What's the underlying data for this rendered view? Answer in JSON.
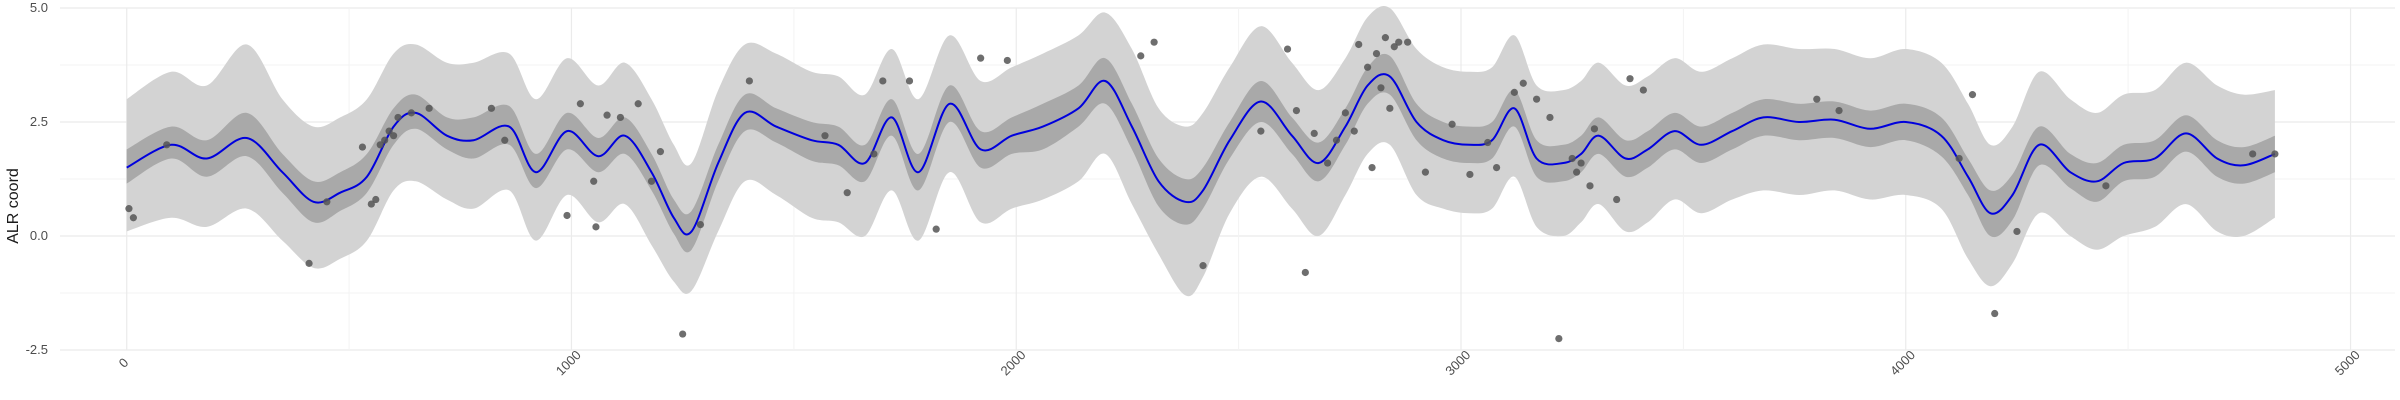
{
  "chart_data": {
    "type": "line",
    "title": "",
    "xlabel": "",
    "ylabel": "ALR coord",
    "xlim": [
      -150,
      5100
    ],
    "ylim": [
      -2.5,
      5.0
    ],
    "x_ticks": [
      0,
      1000,
      2000,
      3000,
      4000,
      5000
    ],
    "y_ticks": [
      -2.5,
      0.0,
      2.5,
      5.0
    ],
    "x_tick_labels": [
      "0",
      "1000",
      "2000",
      "3000",
      "4000",
      "5000"
    ],
    "y_tick_labels": [
      "-2.5",
      "0.0",
      "2.5",
      "5.0"
    ],
    "grid": true,
    "colors": {
      "mean_line": "#0000dd",
      "inner_band": "#a9a9a9",
      "outer_band": "#d3d3d3",
      "points": "#555555",
      "grid": "#ebebeb"
    },
    "series": [
      {
        "role": "mean",
        "x": [
          0,
          100,
          180,
          270,
          350,
          420,
          480,
          540,
          600,
          650,
          720,
          780,
          860,
          920,
          990,
          1060,
          1120,
          1180,
          1230,
          1270,
          1330,
          1390,
          1460,
          1540,
          1600,
          1660,
          1720,
          1780,
          1850,
          1920,
          1990,
          2060,
          2140,
          2200,
          2260,
          2320,
          2380,
          2420,
          2480,
          2550,
          2620,
          2680,
          2740,
          2790,
          2840,
          2900,
          2960,
          3020,
          3070,
          3120,
          3170,
          3230,
          3270,
          3310,
          3370,
          3420,
          3480,
          3540,
          3610,
          3680,
          3760,
          3840,
          3920,
          4000,
          4080,
          4140,
          4190,
          4240,
          4300,
          4370,
          4430,
          4490,
          4560,
          4630,
          4700,
          4760,
          4830
        ],
        "y": [
          1.5,
          2.0,
          1.7,
          2.15,
          1.4,
          0.75,
          0.95,
          1.3,
          2.4,
          2.7,
          2.2,
          2.1,
          2.4,
          1.4,
          2.3,
          1.75,
          2.2,
          1.4,
          0.4,
          0.1,
          1.6,
          2.7,
          2.4,
          2.1,
          2.0,
          1.6,
          2.6,
          1.4,
          2.9,
          1.9,
          2.2,
          2.4,
          2.8,
          3.4,
          2.4,
          1.2,
          0.75,
          1.0,
          2.1,
          2.95,
          2.2,
          1.6,
          2.4,
          3.3,
          3.5,
          2.5,
          2.1,
          2.0,
          2.1,
          2.8,
          1.7,
          1.6,
          1.8,
          2.2,
          1.7,
          1.9,
          2.3,
          2.0,
          2.3,
          2.6,
          2.5,
          2.55,
          2.35,
          2.5,
          2.2,
          1.3,
          0.5,
          0.9,
          2.0,
          1.4,
          1.2,
          1.6,
          1.7,
          2.25,
          1.7,
          1.55,
          1.8
        ]
      },
      {
        "role": "inner_band",
        "x": [
          0,
          100,
          180,
          270,
          350,
          420,
          480,
          540,
          600,
          650,
          720,
          780,
          860,
          920,
          990,
          1060,
          1120,
          1180,
          1230,
          1270,
          1330,
          1390,
          1460,
          1540,
          1600,
          1660,
          1720,
          1780,
          1850,
          1920,
          1990,
          2060,
          2140,
          2200,
          2260,
          2320,
          2380,
          2420,
          2480,
          2550,
          2620,
          2680,
          2740,
          2790,
          2840,
          2900,
          2960,
          3020,
          3070,
          3120,
          3170,
          3230,
          3270,
          3310,
          3370,
          3420,
          3480,
          3540,
          3610,
          3680,
          3760,
          3840,
          3920,
          4000,
          4080,
          4140,
          4190,
          4240,
          4300,
          4370,
          4430,
          4490,
          4560,
          4630,
          4700,
          4760,
          4830
        ],
        "lower": [
          1.15,
          1.7,
          1.3,
          1.75,
          0.95,
          0.3,
          0.55,
          0.95,
          2.0,
          2.35,
          1.9,
          1.7,
          2.0,
          1.05,
          1.9,
          1.4,
          1.8,
          1.0,
          0.05,
          -0.3,
          1.2,
          2.3,
          2.05,
          1.65,
          1.55,
          1.2,
          2.2,
          1.0,
          2.5,
          1.5,
          1.8,
          1.9,
          2.4,
          2.9,
          1.9,
          0.65,
          0.25,
          0.6,
          1.7,
          2.5,
          1.8,
          1.2,
          2.0,
          2.9,
          3.1,
          2.1,
          1.7,
          1.6,
          1.7,
          2.4,
          1.3,
          1.2,
          1.4,
          1.8,
          1.3,
          1.5,
          1.9,
          1.6,
          1.9,
          2.2,
          2.1,
          2.15,
          1.95,
          2.1,
          1.75,
          0.9,
          0.0,
          0.35,
          1.55,
          1.05,
          0.75,
          1.2,
          1.3,
          1.85,
          1.3,
          1.15,
          1.4
        ],
        "upper": [
          1.9,
          2.4,
          2.1,
          2.7,
          1.8,
          1.2,
          1.4,
          1.8,
          2.8,
          3.1,
          2.6,
          2.6,
          2.85,
          1.8,
          2.7,
          2.15,
          2.6,
          1.8,
          0.8,
          0.55,
          2.0,
          3.1,
          2.8,
          2.5,
          2.4,
          2.0,
          3.0,
          1.8,
          3.3,
          2.3,
          2.6,
          2.9,
          3.3,
          3.9,
          2.9,
          1.7,
          1.25,
          1.5,
          2.5,
          3.4,
          2.6,
          2.05,
          2.8,
          3.7,
          3.95,
          2.9,
          2.5,
          2.4,
          2.5,
          3.2,
          2.1,
          2.0,
          2.2,
          2.6,
          2.1,
          2.3,
          2.7,
          2.4,
          2.7,
          3.0,
          2.9,
          2.95,
          2.75,
          2.9,
          2.6,
          1.7,
          1.0,
          1.35,
          2.4,
          1.8,
          1.6,
          2.0,
          2.1,
          2.65,
          2.1,
          1.95,
          2.2
        ]
      },
      {
        "role": "outer_band",
        "x": [
          0,
          100,
          180,
          270,
          350,
          420,
          480,
          540,
          600,
          650,
          720,
          780,
          860,
          920,
          990,
          1060,
          1120,
          1180,
          1230,
          1270,
          1330,
          1390,
          1460,
          1540,
          1600,
          1660,
          1720,
          1780,
          1850,
          1920,
          1990,
          2060,
          2140,
          2200,
          2260,
          2320,
          2380,
          2420,
          2480,
          2550,
          2620,
          2680,
          2740,
          2790,
          2840,
          2900,
          2960,
          3020,
          3070,
          3120,
          3170,
          3230,
          3270,
          3310,
          3370,
          3420,
          3480,
          3540,
          3610,
          3680,
          3760,
          3840,
          3920,
          4000,
          4080,
          4140,
          4190,
          4240,
          4300,
          4370,
          4430,
          4490,
          4560,
          4630,
          4700,
          4760,
          4830
        ],
        "lower": [
          0.1,
          0.4,
          0.2,
          0.6,
          -0.1,
          -0.7,
          -0.5,
          -0.1,
          1.0,
          1.2,
          0.8,
          0.6,
          1.0,
          -0.1,
          0.9,
          0.3,
          0.7,
          -0.2,
          -1.0,
          -1.2,
          0.1,
          1.2,
          0.9,
          0.4,
          0.3,
          0.0,
          1.0,
          -0.1,
          1.4,
          0.3,
          0.6,
          0.8,
          1.2,
          1.8,
          0.7,
          -0.4,
          -1.3,
          -0.9,
          0.5,
          1.3,
          0.6,
          0.0,
          0.9,
          1.8,
          2.0,
          0.9,
          0.6,
          0.5,
          0.6,
          1.3,
          0.2,
          0.0,
          0.3,
          0.7,
          0.1,
          0.3,
          0.8,
          0.5,
          0.8,
          1.0,
          0.9,
          1.0,
          0.8,
          0.9,
          0.6,
          -0.5,
          -1.1,
          -0.6,
          0.5,
          0.0,
          -0.3,
          0.0,
          0.2,
          0.7,
          0.1,
          0.0,
          0.4
        ],
        "upper": [
          3.0,
          3.6,
          3.3,
          4.2,
          3.0,
          2.4,
          2.6,
          3.0,
          4.0,
          4.2,
          3.8,
          3.8,
          4.0,
          3.0,
          3.9,
          3.3,
          3.8,
          3.0,
          2.0,
          1.6,
          3.2,
          4.2,
          4.0,
          3.6,
          3.5,
          3.1,
          4.1,
          3.0,
          4.4,
          3.4,
          3.7,
          4.0,
          4.4,
          4.9,
          4.1,
          2.8,
          2.4,
          2.7,
          3.7,
          4.6,
          3.8,
          3.2,
          3.9,
          4.8,
          5.0,
          4.1,
          3.7,
          3.6,
          3.7,
          4.4,
          3.3,
          3.2,
          3.4,
          3.8,
          3.3,
          3.5,
          3.9,
          3.6,
          3.9,
          4.2,
          4.1,
          4.1,
          3.9,
          4.1,
          3.8,
          2.9,
          2.0,
          2.4,
          3.6,
          3.0,
          2.7,
          3.1,
          3.2,
          3.8,
          3.3,
          3.1,
          3.2
        ]
      },
      {
        "role": "observations",
        "x": [
          5,
          15,
          90,
          410,
          450,
          530,
          550,
          560,
          570,
          580,
          590,
          600,
          610,
          640,
          680,
          820,
          850,
          990,
          1020,
          1050,
          1055,
          1080,
          1110,
          1150,
          1180,
          1200,
          1250,
          1290,
          1400,
          1570,
          1620,
          1680,
          1700,
          1760,
          1820,
          1920,
          1980,
          2280,
          2310,
          2420,
          2550,
          2610,
          2630,
          2650,
          2670,
          2700,
          2720,
          2740,
          2760,
          2770,
          2790,
          2800,
          2810,
          2820,
          2830,
          2840,
          2850,
          2860,
          2880,
          2920,
          2980,
          3020,
          3060,
          3080,
          3120,
          3140,
          3170,
          3200,
          3220,
          3250,
          3260,
          3270,
          3290,
          3300,
          3350,
          3380,
          3410,
          3800,
          3850,
          4120,
          4150,
          4200,
          4250,
          4450,
          4780,
          4830
        ],
        "y": [
          0.6,
          0.4,
          2.0,
          -0.6,
          0.75,
          1.95,
          0.7,
          0.8,
          2.0,
          2.1,
          2.3,
          2.2,
          2.6,
          2.7,
          2.8,
          2.8,
          2.1,
          0.45,
          2.9,
          1.2,
          0.2,
          2.65,
          2.6,
          2.9,
          1.2,
          1.85,
          -2.15,
          0.25,
          3.4,
          2.2,
          0.95,
          1.8,
          3.4,
          3.4,
          0.15,
          3.9,
          3.85,
          3.95,
          4.25,
          -0.65,
          2.3,
          4.1,
          2.75,
          -0.8,
          2.25,
          1.6,
          2.1,
          2.7,
          2.3,
          4.2,
          3.7,
          1.5,
          4.0,
          3.25,
          4.35,
          2.8,
          4.15,
          4.25,
          4.25,
          1.4,
          2.45,
          1.35,
          2.05,
          1.5,
          3.15,
          3.35,
          3.0,
          2.6,
          -2.25,
          1.7,
          1.4,
          1.6,
          1.1,
          2.35,
          0.8,
          3.45,
          3.2,
          3.0,
          2.75,
          1.7,
          3.1,
          -1.7,
          0.1,
          1.1,
          1.8,
          1.8
        ]
      }
    ]
  }
}
